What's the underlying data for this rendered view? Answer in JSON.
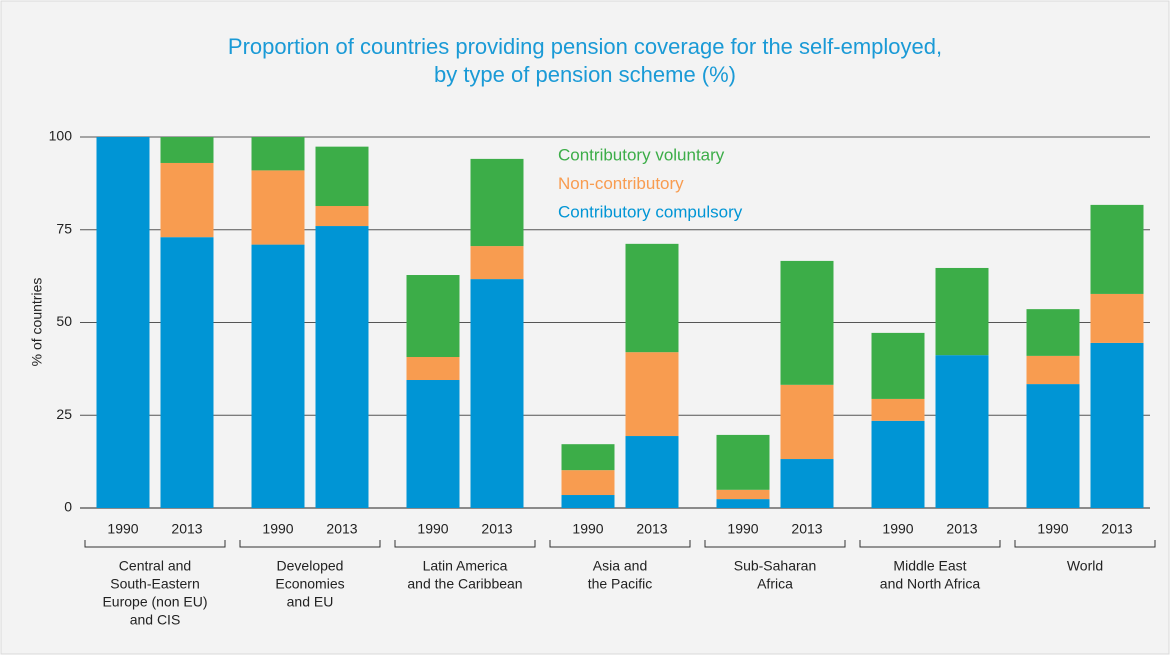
{
  "chart_data": {
    "type": "stacked_bar",
    "title": [
      "Proportion of countries providing pension coverage for the self-employed,",
      "by type of pension scheme (%)"
    ],
    "y_label": "% of countries",
    "categories": [
      "1990",
      "2013",
      "1990",
      "2013",
      "1990",
      "2013",
      "1990",
      "2013",
      "1990",
      "2013",
      "1990",
      "2013",
      "1990",
      "2013"
    ],
    "groups": [
      [
        "Central and",
        "South-Eastern",
        "Europe (non EU)",
        "and CIS"
      ],
      [
        "Developed",
        "Economies",
        "and EU"
      ],
      [
        "Latin America",
        "and the Caribbean"
      ],
      [
        "Asia and",
        "the Pacific"
      ],
      [
        "Sub-Saharan",
        "Africa"
      ],
      [
        "Middle East",
        "and North Africa"
      ],
      [
        "World"
      ]
    ],
    "series": [
      {
        "name": "Contributory compulsory",
        "color": "#0095d5",
        "values": [
          100,
          73,
          71,
          76,
          34.5,
          61.7,
          3.5,
          19.4,
          2.4,
          13.2,
          23.5,
          41.2,
          33.4,
          44.5
        ]
      },
      {
        "name": "Non-contributory",
        "color": "#f89c50",
        "values": [
          0,
          20,
          20,
          5.4,
          6.2,
          8.9,
          6.7,
          22.6,
          2.5,
          20,
          5.9,
          0,
          7.6,
          13.2
        ]
      },
      {
        "name": "Contributory voluntary",
        "color": "#3cad48",
        "values": [
          0,
          7,
          9,
          16,
          22.1,
          23.5,
          7,
          29.2,
          14.8,
          33.4,
          17.8,
          23.5,
          12.6,
          24
        ]
      }
    ],
    "ylim": [
      0,
      100
    ],
    "yticks": [
      0,
      25,
      50,
      75,
      100
    ],
    "grid": true
  }
}
